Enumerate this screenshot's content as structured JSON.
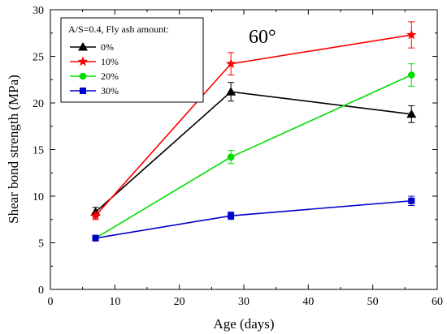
{
  "chart_data": {
    "type": "line",
    "xlabel": "Age (days)",
    "ylabel": "Shear bond strength (MPa)",
    "xlim": [
      0,
      60
    ],
    "ylim": [
      0,
      30
    ],
    "xticks": [
      0,
      10,
      20,
      30,
      40,
      50,
      60
    ],
    "yticks": [
      0,
      5,
      10,
      15,
      20,
      25,
      30
    ],
    "grid": false,
    "legend_position": "top-left",
    "legend_title": "A/S=0.4, Fly ash amount:",
    "annotation": "60°",
    "series": [
      {
        "name": "0%",
        "color": "#000000",
        "marker": "triangle",
        "x": [
          7,
          28,
          56
        ],
        "y": [
          8.3,
          21.2,
          18.8
        ],
        "err": [
          0.5,
          1.0,
          0.9
        ]
      },
      {
        "name": "10%",
        "color": "#ff0000",
        "marker": "star",
        "x": [
          7,
          28,
          56
        ],
        "y": [
          7.9,
          24.2,
          27.3
        ],
        "err": [
          0.4,
          1.2,
          1.4
        ]
      },
      {
        "name": "20%",
        "color": "#00dd00",
        "marker": "circle",
        "x": [
          7,
          28,
          56
        ],
        "y": [
          5.5,
          14.2,
          23.0
        ],
        "err": [
          0.3,
          0.7,
          1.2
        ]
      },
      {
        "name": "30%",
        "color": "#0000cc",
        "marker": "square",
        "x": [
          7,
          28,
          56
        ],
        "y": [
          5.5,
          7.9,
          9.5
        ],
        "err": [
          0.3,
          0.4,
          0.5
        ]
      }
    ]
  }
}
